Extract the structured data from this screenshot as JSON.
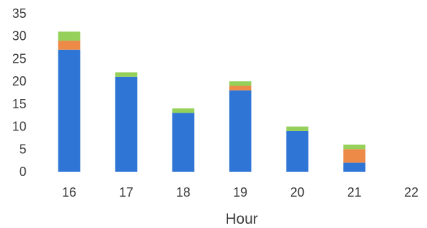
{
  "chart_data": {
    "type": "bar",
    "stacked": true,
    "title": "",
    "xlabel": "Hour",
    "ylabel": "",
    "categories": [
      "16",
      "17",
      "18",
      "19",
      "20",
      "21",
      "22"
    ],
    "ylim": [
      0,
      35
    ],
    "yticks": [
      "0",
      "5",
      "10",
      "15",
      "20",
      "25",
      "30",
      "35"
    ],
    "grid": false,
    "legend": "none",
    "series": [
      {
        "color": "#2f75d6",
        "values": [
          27,
          21,
          13,
          18,
          9,
          2,
          0
        ]
      },
      {
        "color": "#ee8a48",
        "values": [
          2,
          0,
          0,
          1,
          0,
          3,
          0
        ]
      },
      {
        "color": "#94d05a",
        "values": [
          2,
          1,
          1,
          1,
          1,
          1,
          0
        ]
      }
    ]
  }
}
